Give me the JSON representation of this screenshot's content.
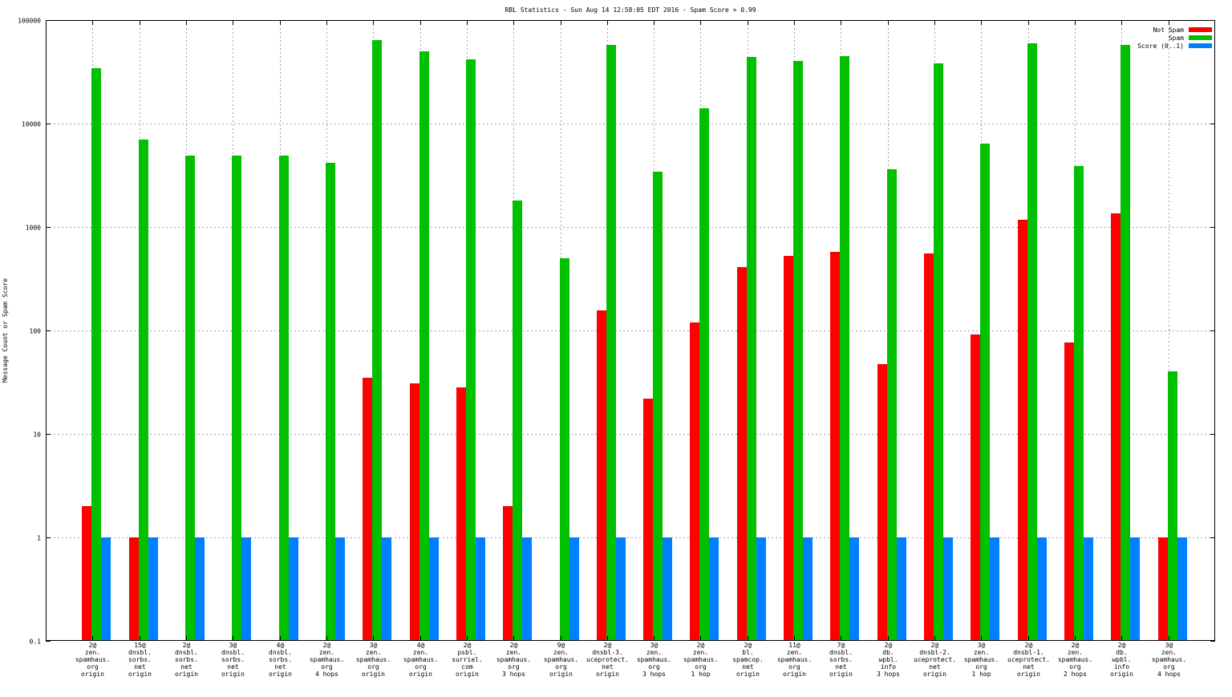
{
  "chart_data": {
    "type": "bar",
    "title": "RBL Statistics - Sun Aug 14 12:58:05 EDT 2016 - Spam Score > 0.99",
    "ylabel": "Message Count or Spam Score",
    "xlabel": "",
    "yscale": "log",
    "ylim": [
      0.1,
      100000
    ],
    "yticks": [
      "0.1",
      "1",
      "10",
      "100",
      "1000",
      "10000",
      "100000"
    ],
    "grid": true,
    "legend_position": "top-right",
    "categories": [
      [
        "2@",
        "zen.",
        "spamhaus.",
        "org",
        "origin"
      ],
      [
        "15@",
        "dnsbl.",
        "sorbs.",
        "net",
        "origin"
      ],
      [
        "2@",
        "dnsbl.",
        "sorbs.",
        "net",
        "origin"
      ],
      [
        "3@",
        "dnsbl.",
        "sorbs.",
        "net",
        "origin"
      ],
      [
        "4@",
        "dnsbl.",
        "sorbs.",
        "net",
        "origin"
      ],
      [
        "2@",
        "zen.",
        "spamhaus.",
        "org",
        "4 hops"
      ],
      [
        "3@",
        "zen.",
        "spamhaus.",
        "org",
        "origin"
      ],
      [
        "4@",
        "zen.",
        "spamhaus.",
        "org",
        "origin"
      ],
      [
        "2@",
        "psbl.",
        "surriel.",
        "com",
        "origin"
      ],
      [
        "2@",
        "zen.",
        "spamhaus.",
        "org",
        "3 hops"
      ],
      [
        "9@",
        "zen.",
        "spamhaus.",
        "org",
        "origin"
      ],
      [
        "2@",
        "dnsbl-3.",
        "uceprotect.",
        "net",
        "origin"
      ],
      [
        "3@",
        "zen.",
        "spamhaus.",
        "org",
        "3 hops"
      ],
      [
        "2@",
        "zen.",
        "spamhaus.",
        "org",
        "1 hop"
      ],
      [
        "2@",
        "bl.",
        "spamcop.",
        "net",
        "origin"
      ],
      [
        "11@",
        "zen.",
        "spamhaus.",
        "org",
        "origin"
      ],
      [
        "7@",
        "dnsbl.",
        "sorbs.",
        "net",
        "origin"
      ],
      [
        "2@",
        "db.",
        "wpbl.",
        "info",
        "3 hops"
      ],
      [
        "2@",
        "dnsbl-2.",
        "uceprotect.",
        "net",
        "origin"
      ],
      [
        "3@",
        "zen.",
        "spamhaus.",
        "org",
        "1 hop"
      ],
      [
        "2@",
        "dnsbl-1.",
        "uceprotect.",
        "net",
        "origin"
      ],
      [
        "2@",
        "zen.",
        "spamhaus.",
        "org",
        "2 hops"
      ],
      [
        "2@",
        "db.",
        "wpbl.",
        "info",
        "origin"
      ],
      [
        "3@",
        "zen.",
        "spamhaus.",
        "org",
        "4 hops"
      ]
    ],
    "series": [
      {
        "name": "Not Spam",
        "color": "#ff0000",
        "values": [
          2,
          1,
          null,
          null,
          null,
          null,
          35,
          31,
          28,
          2,
          null,
          155,
          22,
          120,
          410,
          530,
          580,
          47,
          550,
          92,
          1180,
          76,
          1350,
          1
        ]
      },
      {
        "name": "Spam",
        "color": "#00c000",
        "values": [
          34000,
          7000,
          4900,
          4900,
          4900,
          4200,
          64000,
          50000,
          42000,
          1800,
          500,
          58000,
          3400,
          14000,
          44000,
          40000,
          45000,
          3600,
          38000,
          6400,
          60000,
          3850,
          58000,
          40
        ]
      },
      {
        "name": "Score (0..1)",
        "color": "#0080ff",
        "values": [
          1,
          1,
          1,
          1,
          1,
          1,
          1,
          1,
          1,
          1,
          1,
          1,
          1,
          1,
          1,
          1,
          1,
          1,
          1,
          1,
          1,
          1,
          1,
          1
        ]
      }
    ]
  }
}
